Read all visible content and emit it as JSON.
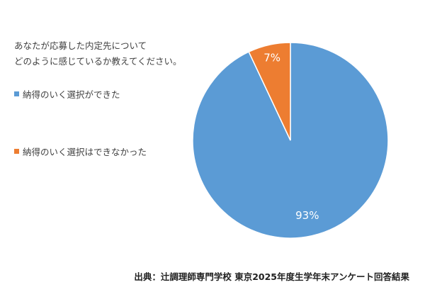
{
  "question_lines": [
    "あなたが応募した内定先について",
    "どのように感じているか教えてください。"
  ],
  "source": "出典：辻調理師専門学校 東京2025年度生学年末アンケート回答結果",
  "chart_data": {
    "type": "pie",
    "categories": [
      "納得のいく選択ができた",
      "納得のいく選択はできなかった"
    ],
    "values": [
      93,
      7
    ],
    "data_labels": [
      "93%",
      "7%"
    ],
    "colors": [
      "#5B9BD5",
      "#ED7D31"
    ],
    "start_angle_deg": 0,
    "direction": "clockwise",
    "legend_position": "left"
  }
}
